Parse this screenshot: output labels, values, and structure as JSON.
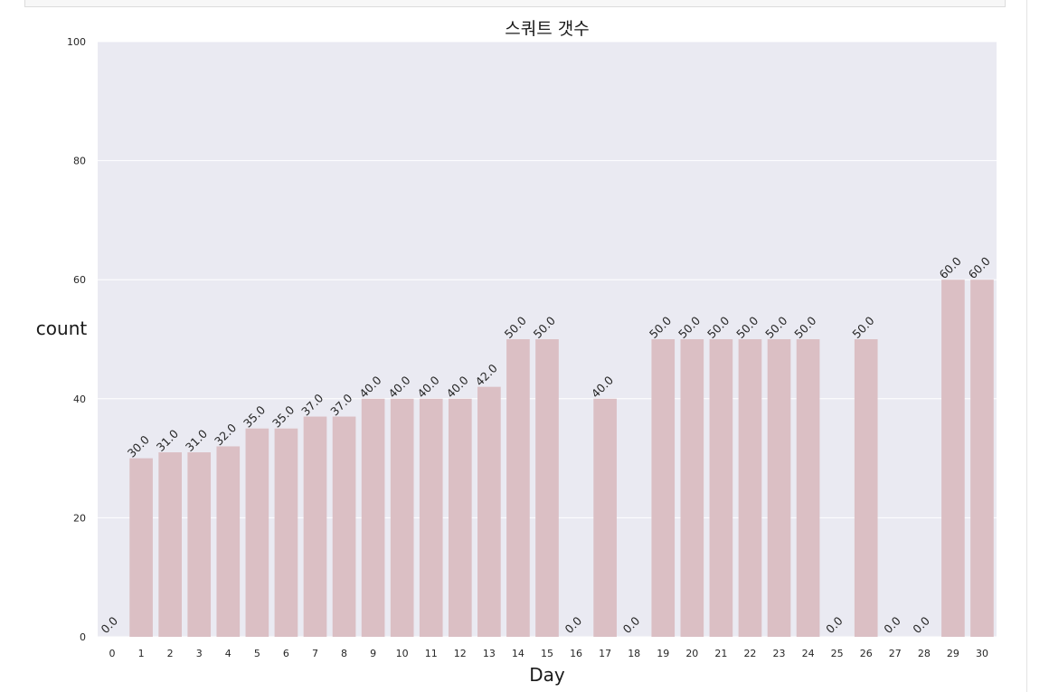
{
  "chart_data": {
    "type": "bar",
    "title": "스쿼트 갯수",
    "xlabel": "Day",
    "ylabel": "count",
    "categories": [
      "0",
      "1",
      "2",
      "3",
      "4",
      "5",
      "6",
      "7",
      "8",
      "9",
      "10",
      "11",
      "12",
      "13",
      "14",
      "15",
      "16",
      "17",
      "18",
      "19",
      "20",
      "21",
      "22",
      "23",
      "24",
      "25",
      "26",
      "27",
      "28",
      "29",
      "30"
    ],
    "values": [
      0,
      30,
      31,
      31,
      32,
      35,
      35,
      37,
      37,
      40,
      40,
      40,
      40,
      42,
      50,
      50,
      0,
      40,
      0,
      50,
      50,
      50,
      50,
      50,
      50,
      0,
      50,
      0,
      0,
      60,
      60
    ],
    "value_labels": [
      "0.0",
      "30.0",
      "31.0",
      "31.0",
      "32.0",
      "35.0",
      "35.0",
      "37.0",
      "37.0",
      "40.0",
      "40.0",
      "40.0",
      "40.0",
      "42.0",
      "50.0",
      "50.0",
      "0.0",
      "40.0",
      "0.0",
      "50.0",
      "50.0",
      "50.0",
      "50.0",
      "50.0",
      "50.0",
      "0.0",
      "50.0",
      "0.0",
      "0.0",
      "60.0",
      "60.0"
    ],
    "ylim": [
      0,
      100
    ],
    "yticks": [
      "0",
      "20",
      "40",
      "60",
      "80",
      "100"
    ],
    "grid": true,
    "colors": {
      "bar": "#dbbfc4",
      "background": "#eaeaf2",
      "grid": "#ffffff"
    }
  }
}
